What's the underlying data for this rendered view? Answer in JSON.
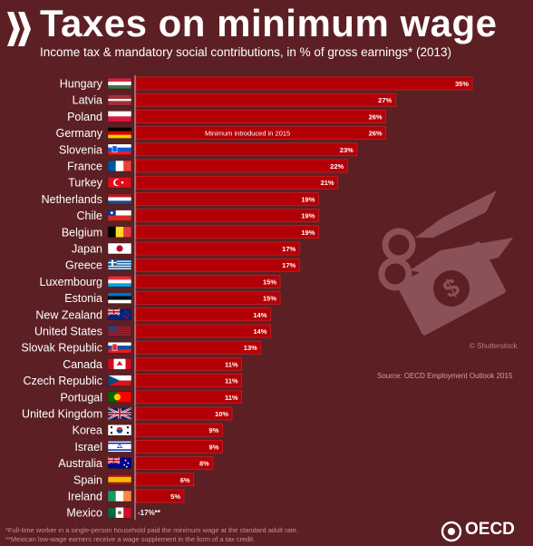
{
  "header": {
    "title": "Taxes on minimum wage",
    "subtitle": "Income tax & mandatory social contributions, in % of gross earnings* (2013)"
  },
  "annotations": {
    "germany_note": "Minimum introduced in 2015",
    "source": "Source: OECD Employment Outlook 2015",
    "credit": "© Shutterstock",
    "footnote1": "*Full-time worker in a single-person household paid the minimum wage at the standard adult rate.",
    "footnote2": "**Mexican low-wage earners receive a wage supplement in the form of a tax credit.",
    "brand": "OECD"
  },
  "colors": {
    "background": "#5c2024",
    "bar": "#b30006",
    "bar_outline": "#d9262b",
    "axis": "#e6a9ad",
    "illustration": "#8a5256"
  },
  "chart_data": {
    "type": "bar",
    "orientation": "horizontal",
    "title": "Taxes on minimum wage",
    "subtitle": "Income tax & mandatory social contributions, in % of gross earnings* (2013)",
    "xlim": [
      -17,
      35
    ],
    "grid": false,
    "categories": [
      "Hungary",
      "Latvia",
      "Poland",
      "Germany",
      "Slovenia",
      "France",
      "Turkey",
      "Netherlands",
      "Chile",
      "Belgium",
      "Japan",
      "Greece",
      "Luxembourg",
      "Estonia",
      "New Zealand",
      "United States",
      "Slovak Republic",
      "Canada",
      "Czech Republic",
      "Portugal",
      "United Kingdom",
      "Korea",
      "Israel",
      "Australia",
      "Spain",
      "Ireland",
      "Mexico"
    ],
    "values": [
      35,
      27,
      26,
      26,
      23,
      22,
      21,
      19,
      19,
      19,
      17,
      17,
      15,
      15,
      14,
      14,
      13,
      11,
      11,
      11,
      10,
      9,
      9,
      8,
      6,
      5,
      -17
    ],
    "data_labels": [
      "35%",
      "27%",
      "26%",
      "26%",
      "23%",
      "22%",
      "21%",
      "19%",
      "19%",
      "19%",
      "17%",
      "17%",
      "15%",
      "15%",
      "14%",
      "14%",
      "13%",
      "11%",
      "11%",
      "11%",
      "10%",
      "9%",
      "9%",
      "8%",
      "6%",
      "5%",
      "-17%**"
    ],
    "flags": [
      "hungary-flag",
      "latvia-flag",
      "poland-flag",
      "germany-flag",
      "slovenia-flag",
      "france-flag",
      "turkey-flag",
      "netherlands-flag",
      "chile-flag",
      "belgium-flag",
      "japan-flag",
      "greece-flag",
      "luxembourg-flag",
      "estonia-flag",
      "new-zealand-flag",
      "united-states-flag",
      "slovakia-flag",
      "canada-flag",
      "czech-republic-flag",
      "portugal-flag",
      "united-kingdom-flag",
      "korea-flag",
      "israel-flag",
      "australia-flag",
      "spain-flag",
      "ireland-flag",
      "mexico-flag"
    ]
  }
}
